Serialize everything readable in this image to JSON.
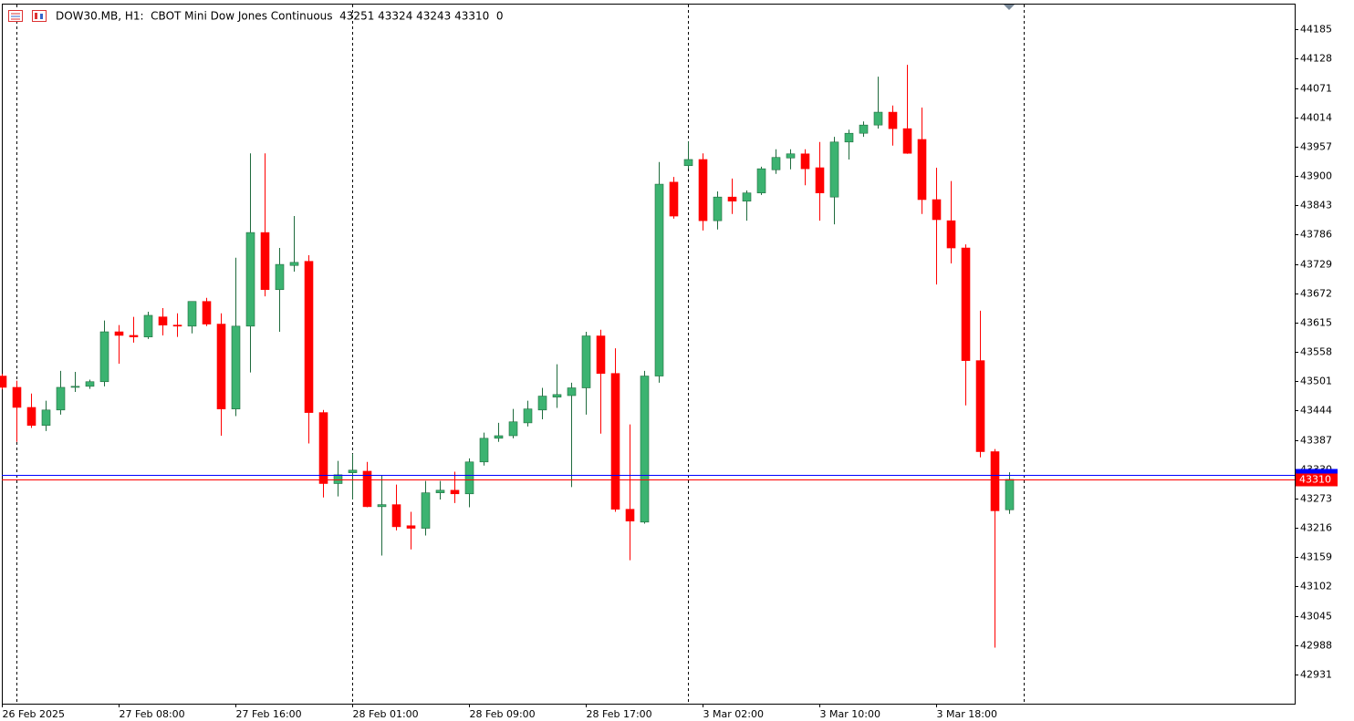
{
  "chart_data": {
    "type": "candlestick",
    "title": "DOW30.MB, H1:  CBOT Mini Dow Jones Continuous  43251 43324 43243 43310  0",
    "categories": [
      "26 Feb 2025",
      null,
      null,
      null,
      null,
      null,
      null,
      null,
      "27 Feb 08:00",
      null,
      null,
      null,
      null,
      null,
      null,
      null,
      "27 Feb 16:00",
      null,
      null,
      null,
      null,
      null,
      null,
      null,
      "28 Feb 01:00",
      null,
      null,
      null,
      null,
      null,
      null,
      null,
      "28 Feb 09:00",
      null,
      null,
      null,
      null,
      null,
      null,
      null,
      "28 Feb 17:00",
      null,
      null,
      null,
      null,
      null,
      null,
      null,
      "3 Mar 02:00",
      null,
      null,
      null,
      null,
      null,
      null,
      null,
      "3 Mar 10:00",
      null,
      null,
      null,
      null,
      null,
      null,
      null,
      "3 Mar 18:00",
      null,
      null,
      null,
      null,
      null
    ],
    "open": [
      43511,
      43489,
      43450,
      43415,
      43445,
      43489,
      43491,
      43500,
      43597,
      43590,
      43587,
      43626,
      43610,
      43608,
      43656,
      43612,
      43447,
      43608,
      43790,
      43679,
      43726,
      43734,
      43440,
      43302,
      43323,
      43326,
      43257,
      43261,
      43220,
      43215,
      43284,
      43289,
      43282,
      43344,
      43390,
      43395,
      43420,
      43445,
      43470,
      43473,
      43488,
      43589,
      43516,
      43252,
      43227,
      43511,
      43888,
      43920,
      43932,
      43813,
      43859,
      43851,
      43867,
      43912,
      43935,
      43943,
      43916,
      43859,
      43966,
      43983,
      43999,
      44024,
      43992,
      43971,
      43854,
      43813,
      43760,
      43541,
      43364,
      43251
    ],
    "high": [
      43515,
      43502,
      43477,
      43463,
      43521,
      43519,
      43504,
      43619,
      43610,
      43626,
      43636,
      43643,
      43633,
      43656,
      43663,
      43633,
      43741,
      43944,
      43944,
      43760,
      43822,
      43746,
      43445,
      43346,
      43360,
      43344,
      43317,
      43300,
      43247,
      43307,
      43307,
      43325,
      43351,
      43401,
      43420,
      43447,
      43463,
      43488,
      43534,
      43498,
      43597,
      43601,
      43565,
      43417,
      43521,
      43927,
      43898,
      43967,
      43944,
      43870,
      43895,
      43872,
      43918,
      43952,
      43952,
      43952,
      43966,
      43976,
      43990,
      44006,
      44093,
      44037,
      44116,
      44033,
      43916,
      43890,
      43767,
      43638,
      43369,
      43324
    ],
    "low": [
      43485,
      43383,
      43410,
      43404,
      43436,
      43480,
      43486,
      43491,
      43535,
      43576,
      43583,
      43590,
      43587,
      43594,
      43608,
      43395,
      43433,
      43518,
      43666,
      43597,
      43714,
      43380,
      43275,
      43277,
      43271,
      43256,
      43162,
      43211,
      43174,
      43201,
      43271,
      43264,
      43256,
      43337,
      43383,
      43390,
      43413,
      43427,
      43449,
      43295,
      43436,
      43399,
      43247,
      43153,
      43224,
      43498,
      43817,
      43914,
      43794,
      43796,
      43826,
      43813,
      43863,
      43904,
      43913,
      43882,
      43813,
      43806,
      43932,
      43976,
      43992,
      43959,
      43943,
      43826,
      43689,
      43730,
      43454,
      43353,
      42983,
      43243
    ],
    "close": [
      43489,
      43450,
      43415,
      43445,
      43489,
      43491,
      43500,
      43597,
      43590,
      43587,
      43629,
      43610,
      43608,
      43656,
      43612,
      43447,
      43608,
      43790,
      43679,
      43728,
      43732,
      43440,
      43302,
      43319,
      43328,
      43257,
      43261,
      43218,
      43215,
      43284,
      43289,
      43282,
      43344,
      43390,
      43395,
      43422,
      43447,
      43472,
      43475,
      43488,
      43589,
      43516,
      43252,
      43229,
      43511,
      43884,
      43822,
      43932,
      43813,
      43859,
      43851,
      43867,
      43914,
      43936,
      43943,
      43914,
      43867,
      43966,
      43983,
      43999,
      44024,
      43992,
      43944,
      43854,
      43815,
      43760,
      43541,
      43364,
      43249,
      43310
    ],
    "up_color": "#3cb371",
    "down_color": "#ff0000",
    "bid": 43310,
    "bid_color": "#ff0000",
    "ask": 43319,
    "ask_color": "#0000ff",
    "ylim": [
      42874,
      44235
    ],
    "yticks": [
      44185,
      44128,
      44071,
      44014,
      43957,
      43900,
      43843,
      43786,
      43729,
      43672,
      43615,
      43558,
      43501,
      43444,
      43387,
      43330,
      43273,
      43216,
      43159,
      43102,
      43045,
      42988,
      42931
    ],
    "grid": false
  }
}
